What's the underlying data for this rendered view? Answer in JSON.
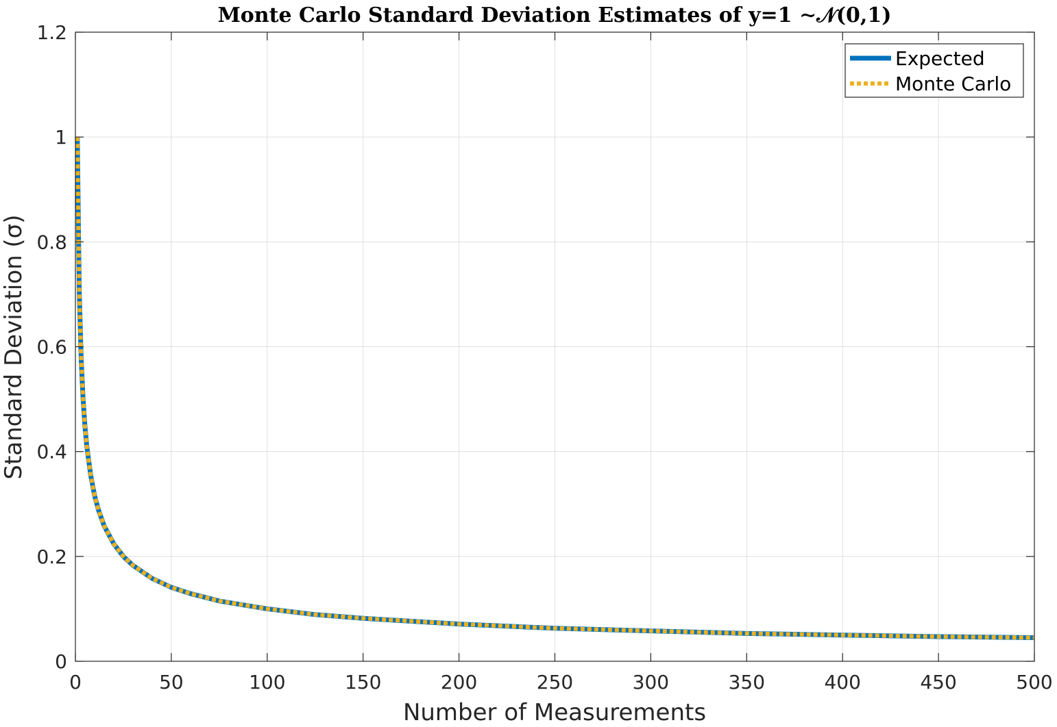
{
  "chart_data": {
    "type": "line",
    "title": "Monte Carlo Standard Deviation Estimates of y=1 ∼𝒩(0,1)",
    "xlabel": "Number of Measurements",
    "ylabel": "Standard Deviation (σ)",
    "xlim": [
      0,
      500
    ],
    "ylim": [
      0,
      1.2
    ],
    "xticks": [
      0,
      50,
      100,
      150,
      200,
      250,
      300,
      350,
      400,
      450,
      500
    ],
    "xtick_labels": [
      "0",
      "50",
      "100",
      "150",
      "200",
      "250",
      "300",
      "350",
      "400",
      "450",
      "500"
    ],
    "yticks": [
      0,
      0.2,
      0.4,
      0.6,
      0.8,
      1,
      1.2
    ],
    "ytick_labels": [
      "0",
      "0.2",
      "0.4",
      "0.6",
      "0.8",
      "1",
      "1.2"
    ],
    "grid": true,
    "legend_position": "top-right",
    "series": [
      {
        "name": "Expected",
        "color": "#0072BD",
        "style": "solid",
        "x": [
          1,
          2,
          3,
          4,
          5,
          6,
          8,
          10,
          12,
          15,
          20,
          25,
          30,
          40,
          50,
          60,
          75,
          100,
          125,
          150,
          200,
          250,
          300,
          350,
          400,
          450,
          500
        ],
        "y": [
          1.0,
          0.707,
          0.577,
          0.5,
          0.447,
          0.408,
          0.354,
          0.316,
          0.289,
          0.258,
          0.224,
          0.2,
          0.183,
          0.158,
          0.141,
          0.129,
          0.115,
          0.1,
          0.089,
          0.082,
          0.071,
          0.063,
          0.058,
          0.053,
          0.05,
          0.047,
          0.045
        ]
      },
      {
        "name": "Monte Carlo",
        "color": "#EDB120",
        "style": "dotted",
        "x": [
          1,
          2,
          3,
          4,
          5,
          6,
          8,
          10,
          12,
          15,
          20,
          25,
          30,
          40,
          50,
          60,
          75,
          100,
          125,
          150,
          200,
          250,
          300,
          350,
          400,
          450,
          500
        ],
        "y": [
          1.0,
          0.707,
          0.577,
          0.5,
          0.447,
          0.408,
          0.354,
          0.316,
          0.289,
          0.258,
          0.224,
          0.2,
          0.183,
          0.158,
          0.141,
          0.129,
          0.115,
          0.1,
          0.089,
          0.082,
          0.071,
          0.063,
          0.058,
          0.053,
          0.05,
          0.047,
          0.045
        ]
      }
    ]
  }
}
